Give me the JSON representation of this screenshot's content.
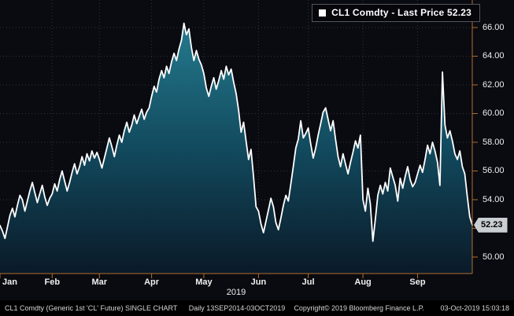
{
  "legend": {
    "label": "CL1 Comdty - Last Price 52.23"
  },
  "last_price_label": "52.23",
  "x_axis": {
    "year": "2019"
  },
  "footer": {
    "left_primary": "CL1 Comdty (Generic 1st 'CL' Future) SINGLE CHART",
    "left_secondary": "Daily 13SEP2014-03OCT2019",
    "copyright": "Copyright© 2019 Bloomberg Finance L.P.",
    "timestamp": "03-Oct-2019 15:03:18"
  },
  "colors": {
    "background": "#0a0a11",
    "line": "#ffffff",
    "area_top": "#257a8e",
    "area_mid": "#124a5e",
    "area_bottom": "#0a1a28",
    "axis_amber": "#b06d2c",
    "grid": "#32323e",
    "last_price_box_bg": "#c9ced3"
  },
  "chart_data": {
    "type": "area",
    "title": "CL1 Comdty - Last Price 52.23",
    "series_name": "CL1 Comdty Last Price",
    "xlabel": "",
    "ylabel": "",
    "ylim": [
      48.6,
      67.9
    ],
    "grid": true,
    "legend_position": "top-right",
    "y_ticks": [
      50,
      52,
      54,
      56,
      58,
      60,
      62,
      64,
      66
    ],
    "last_price": 52.23,
    "months": [
      {
        "label": "Jan",
        "index": 0
      },
      {
        "label": "Feb",
        "index": 21
      },
      {
        "label": "Mar",
        "index": 40
      },
      {
        "label": "Apr",
        "index": 61
      },
      {
        "label": "May",
        "index": 82
      },
      {
        "label": "Jun",
        "index": 104
      },
      {
        "label": "Jul",
        "index": 124
      },
      {
        "label": "Aug",
        "index": 146
      },
      {
        "label": "Sep",
        "index": 168
      }
    ],
    "values": [
      52.2,
      51.8,
      51.3,
      52.1,
      52.9,
      53.4,
      52.8,
      53.6,
      54.3,
      54.0,
      53.2,
      53.9,
      54.6,
      55.2,
      54.5,
      53.8,
      54.4,
      55.0,
      54.2,
      53.6,
      54.1,
      54.4,
      55.1,
      54.6,
      55.4,
      56.0,
      55.3,
      54.6,
      55.2,
      55.9,
      56.5,
      55.8,
      56.3,
      57.0,
      56.4,
      57.2,
      56.7,
      57.4,
      56.9,
      57.3,
      56.8,
      56.2,
      56.9,
      57.6,
      58.3,
      57.7,
      57.0,
      57.8,
      58.5,
      58.0,
      58.8,
      59.4,
      58.7,
      59.2,
      59.9,
      59.3,
      59.8,
      60.3,
      59.6,
      60.1,
      60.4,
      61.2,
      61.9,
      61.5,
      62.4,
      63.0,
      62.5,
      63.3,
      62.8,
      63.6,
      64.2,
      63.7,
      64.5,
      65.1,
      66.3,
      65.5,
      65.9,
      64.6,
      63.7,
      64.4,
      63.8,
      63.4,
      62.8,
      61.8,
      61.2,
      61.9,
      62.5,
      61.7,
      62.3,
      63.0,
      62.4,
      63.3,
      62.7,
      63.1,
      62.2,
      61.4,
      60.2,
      58.7,
      59.4,
      58.1,
      56.8,
      57.5,
      55.6,
      53.5,
      53.2,
      52.3,
      51.7,
      52.5,
      53.3,
      54.1,
      53.5,
      52.4,
      51.9,
      52.7,
      53.6,
      54.3,
      53.9,
      55.1,
      56.3,
      57.6,
      58.2,
      59.5,
      58.3,
      58.6,
      59.0,
      57.9,
      56.9,
      57.6,
      58.5,
      59.3,
      60.1,
      60.4,
      59.6,
      58.8,
      59.5,
      58.2,
      57.0,
      56.3,
      57.2,
      56.5,
      55.8,
      56.6,
      57.3,
      58.1,
      57.6,
      58.5,
      54.0,
      53.2,
      54.8,
      53.7,
      51.1,
      52.6,
      54.3,
      55.0,
      54.4,
      55.2,
      54.6,
      56.2,
      55.6,
      55.0,
      53.9,
      55.5,
      54.8,
      55.6,
      56.3,
      55.4,
      54.9,
      55.2,
      55.8,
      56.4,
      55.9,
      56.8,
      57.8,
      57.2,
      58.0,
      57.4,
      56.6,
      55.0,
      62.9,
      59.2,
      58.3,
      58.8,
      58.1,
      57.2,
      56.8,
      57.4,
      56.3,
      55.8,
      54.2,
      52.8,
      52.23
    ]
  }
}
